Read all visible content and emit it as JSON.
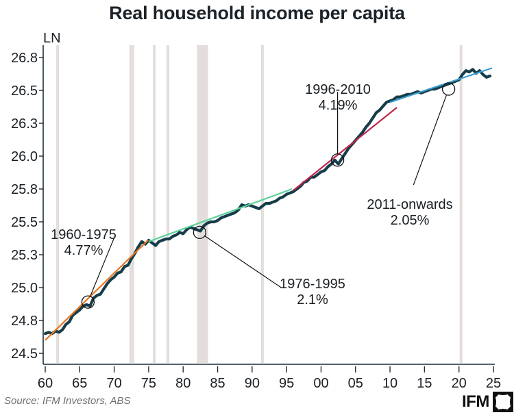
{
  "chart_data": {
    "type": "line",
    "title": "Real household income per capita",
    "ylabel": "LN",
    "xlabel": "",
    "ylim": [
      24.42,
      26.85
    ],
    "xlim": [
      1960,
      2025
    ],
    "yticks": [
      24.5,
      24.75,
      25.0,
      25.25,
      25.5,
      25.75,
      26.0,
      26.25,
      26.5,
      26.75
    ],
    "ytick_labels": [
      "24.5",
      "24.8",
      "25.0",
      "25.3",
      "25.5",
      "25.8",
      "26.0",
      "26.3",
      "26.5",
      "26.8"
    ],
    "xticks": [
      1960,
      1965,
      1970,
      1975,
      1980,
      1985,
      1990,
      1995,
      2000,
      2005,
      2010,
      2015,
      2020,
      2025
    ],
    "xtick_labels": [
      "60",
      "65",
      "70",
      "75",
      "80",
      "85",
      "90",
      "95",
      "00",
      "05",
      "10",
      "15",
      "20",
      "25"
    ],
    "grid": false,
    "recessions": [
      [
        1961.6,
        1962.0
      ],
      [
        1972.2,
        1972.9
      ],
      [
        1975.6,
        1976.0
      ],
      [
        1977.6,
        1978.0
      ],
      [
        1982.0,
        1983.6
      ],
      [
        1991.3,
        1991.7
      ],
      [
        2020.1,
        2020.5
      ]
    ],
    "series": [
      {
        "name": "Real household income per capita (LN)",
        "color": "#163d4a",
        "x": [
          1960.0,
          1960.5,
          1961.0,
          1961.5,
          1962.0,
          1962.5,
          1963.0,
          1963.5,
          1964.0,
          1964.5,
          1965.0,
          1965.5,
          1966.0,
          1966.5,
          1967.0,
          1967.5,
          1968.0,
          1968.5,
          1969.0,
          1969.5,
          1970.0,
          1970.5,
          1971.0,
          1971.5,
          1972.0,
          1972.5,
          1973.0,
          1973.5,
          1974.0,
          1974.5,
          1975.0,
          1975.5,
          1976.0,
          1976.5,
          1977.0,
          1977.5,
          1978.0,
          1978.5,
          1979.0,
          1979.5,
          1980.0,
          1980.5,
          1981.0,
          1981.5,
          1982.0,
          1982.5,
          1983.0,
          1983.5,
          1984.0,
          1984.5,
          1985.0,
          1985.5,
          1986.0,
          1986.5,
          1987.0,
          1987.5,
          1988.0,
          1988.5,
          1989.0,
          1989.5,
          1990.0,
          1990.5,
          1991.0,
          1991.5,
          1992.0,
          1992.5,
          1993.0,
          1993.5,
          1994.0,
          1994.5,
          1995.0,
          1995.5,
          1996.0,
          1996.5,
          1997.0,
          1997.5,
          1998.0,
          1998.5,
          1999.0,
          1999.5,
          2000.0,
          2000.5,
          2001.0,
          2001.5,
          2002.0,
          2002.5,
          2003.0,
          2003.5,
          2004.0,
          2004.5,
          2005.0,
          2005.5,
          2006.0,
          2006.5,
          2007.0,
          2007.5,
          2008.0,
          2008.5,
          2009.0,
          2009.5,
          2010.0,
          2010.5,
          2011.0,
          2011.5,
          2012.0,
          2012.5,
          2013.0,
          2013.5,
          2014.0,
          2014.5,
          2015.0,
          2015.5,
          2016.0,
          2016.5,
          2017.0,
          2017.5,
          2018.0,
          2018.5,
          2019.0,
          2019.5,
          2020.0,
          2020.5,
          2021.0,
          2021.5,
          2022.0,
          2022.5,
          2023.0,
          2023.5,
          2024.0,
          2024.5
        ],
        "values": [
          24.65,
          24.66,
          24.65,
          24.67,
          24.66,
          24.68,
          24.72,
          24.74,
          24.79,
          24.81,
          24.83,
          24.86,
          24.87,
          24.86,
          24.92,
          24.94,
          24.95,
          24.99,
          25.03,
          25.06,
          25.08,
          25.11,
          25.12,
          25.16,
          25.17,
          25.22,
          25.26,
          25.31,
          25.35,
          25.33,
          25.36,
          25.34,
          25.32,
          25.35,
          25.36,
          25.37,
          25.37,
          25.39,
          25.4,
          25.42,
          25.41,
          25.44,
          25.46,
          25.45,
          25.44,
          25.43,
          25.47,
          25.49,
          25.5,
          25.5,
          25.51,
          25.53,
          25.54,
          25.55,
          25.56,
          25.57,
          25.59,
          25.63,
          25.62,
          25.63,
          25.62,
          25.61,
          25.6,
          25.62,
          25.64,
          25.64,
          25.65,
          25.66,
          25.68,
          25.69,
          25.71,
          25.72,
          25.73,
          25.75,
          25.77,
          25.8,
          25.81,
          25.84,
          25.84,
          25.86,
          25.88,
          25.89,
          25.92,
          25.94,
          25.97,
          25.94,
          25.98,
          26.02,
          26.06,
          26.09,
          26.12,
          26.15,
          26.18,
          26.22,
          26.25,
          26.29,
          26.33,
          26.35,
          26.38,
          26.41,
          26.42,
          26.43,
          26.45,
          26.45,
          26.46,
          26.47,
          26.47,
          26.48,
          26.49,
          26.48,
          26.49,
          26.5,
          26.51,
          26.51,
          26.52,
          26.53,
          26.54,
          26.55,
          26.56,
          26.57,
          26.58,
          26.62,
          26.65,
          26.64,
          26.66,
          26.63,
          26.65,
          26.62,
          26.6,
          26.61
        ]
      }
    ],
    "trend_lines": [
      {
        "name": "1960-1975",
        "label": "1960-1975",
        "rate": "4.77%",
        "color": "#e87722",
        "x": [
          1960.0,
          1974.9
        ],
        "y": [
          24.6,
          25.36
        ],
        "marker": [
          1966.2,
          24.89
        ],
        "text_anchor": [
          1970.0,
          25.4
        ]
      },
      {
        "name": "1976-1995",
        "label": "1976-1995",
        "rate": "2.1%",
        "color": "#5fd09a",
        "x": [
          1975.0,
          1995.8
        ],
        "y": [
          25.35,
          25.75
        ],
        "marker": [
          1982.4,
          25.42
        ],
        "text_anchor": [
          1994.2,
          24.98
        ]
      },
      {
        "name": "1996-2010",
        "label": "1996-2010",
        "rate": "4.19%",
        "color": "#c0264b",
        "x": [
          1996.0,
          2011.0
        ],
        "y": [
          25.74,
          26.37
        ],
        "marker": [
          2002.4,
          25.97
        ],
        "text_anchor": [
          2002.4,
          26.51
        ]
      },
      {
        "name": "2011-onwards",
        "label": "2011-onwards",
        "rate": "2.05%",
        "color": "#3b9dd1",
        "x": [
          2010.0,
          2024.8
        ],
        "y": [
          26.41,
          26.67
        ],
        "marker": [
          2018.5,
          26.51
        ],
        "text_anchor": [
          2013.4,
          25.76
        ]
      }
    ],
    "source": "Source: IFM Investors, ABS",
    "brand": "IFM"
  }
}
